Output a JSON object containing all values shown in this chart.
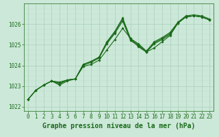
{
  "title": "Graphe pression niveau de la mer (hPa)",
  "background_color": "#cce8d8",
  "plot_bg_color": "#cce8d8",
  "grid_color_major": "#aacfbe",
  "grid_color_minor": "#bbdccc",
  "line_color": "#1a6b1a",
  "xlim": [
    -0.5,
    23.5
  ],
  "ylim": [
    1021.8,
    1027.0
  ],
  "yticks": [
    1022,
    1023,
    1024,
    1025,
    1026
  ],
  "xticks": [
    0,
    1,
    2,
    3,
    4,
    5,
    6,
    7,
    8,
    9,
    10,
    11,
    12,
    13,
    14,
    15,
    16,
    17,
    18,
    19,
    20,
    21,
    22,
    23
  ],
  "series": [
    [
      1022.35,
      1022.8,
      1023.05,
      1023.25,
      1023.2,
      1023.3,
      1023.35,
      1023.95,
      1024.05,
      1024.25,
      1024.75,
      1025.25,
      1025.8,
      1025.3,
      1024.9,
      1024.65,
      1024.85,
      1025.15,
      1025.45,
      1026.05,
      1026.35,
      1026.4,
      1026.35,
      1026.2
    ],
    [
      1022.35,
      1022.8,
      1023.05,
      1023.25,
      1023.15,
      1023.3,
      1023.35,
      1024.0,
      1024.15,
      1024.35,
      1025.05,
      1025.55,
      1026.15,
      1025.2,
      1024.95,
      1024.65,
      1025.05,
      1025.25,
      1025.5,
      1026.05,
      1026.35,
      1026.4,
      1026.35,
      1026.2
    ],
    [
      1022.35,
      1022.8,
      1023.05,
      1023.25,
      1023.1,
      1023.3,
      1023.35,
      1024.05,
      1024.2,
      1024.4,
      1025.1,
      1025.6,
      1026.25,
      1025.25,
      1025.0,
      1024.65,
      1025.1,
      1025.3,
      1025.55,
      1026.05,
      1026.35,
      1026.4,
      1026.35,
      1026.2
    ],
    [
      1022.35,
      1022.8,
      1023.05,
      1023.25,
      1023.05,
      1023.25,
      1023.35,
      1024.05,
      1024.2,
      1024.4,
      1025.15,
      1025.65,
      1026.3,
      1025.3,
      1025.05,
      1024.7,
      1025.15,
      1025.35,
      1025.6,
      1026.1,
      1026.4,
      1026.45,
      1026.4,
      1026.25
    ]
  ],
  "ylabel_fontsize": 6.5,
  "xlabel_fontsize": 7.0,
  "tick_fontsize": 5.5
}
